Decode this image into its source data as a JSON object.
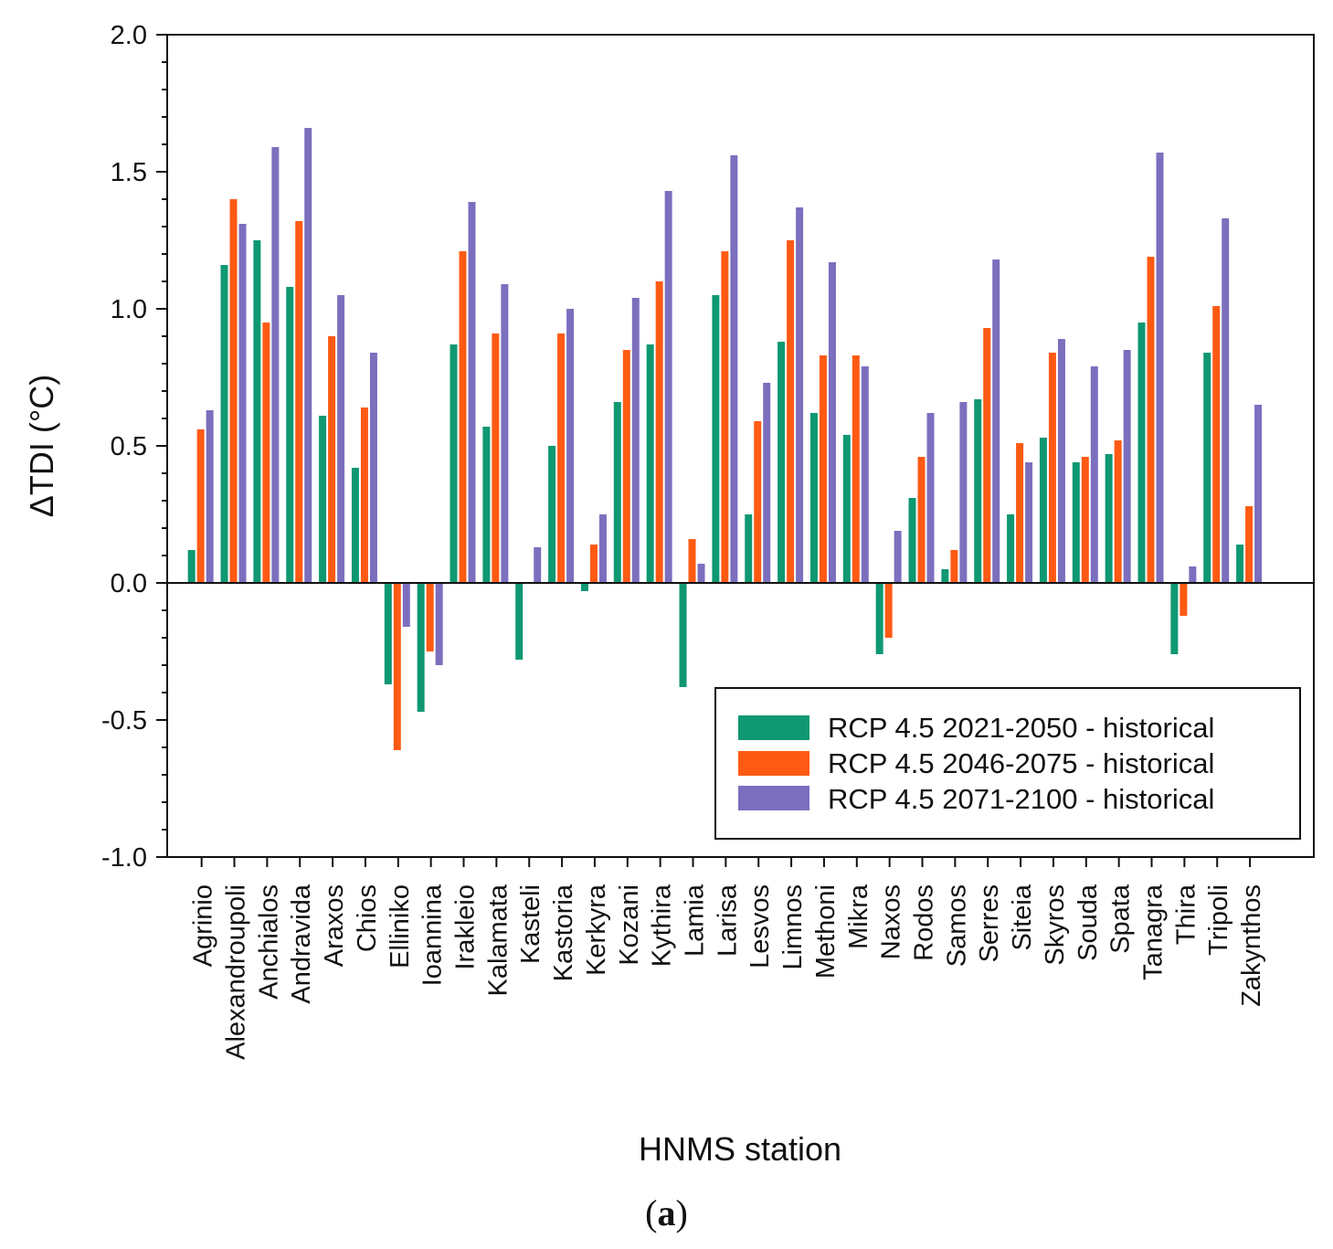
{
  "chart_data": {
    "type": "bar",
    "title": "",
    "xlabel": "HNMS station",
    "ylabel": "ΔTDI (°C)",
    "ylim": [
      -1.0,
      2.0
    ],
    "yticks": [
      "-1.0",
      "-0.5",
      "0.0",
      "0.5",
      "1.0",
      "1.5",
      "2.0"
    ],
    "legend_position": "lower-right",
    "categories": [
      "Agrinio",
      "Alexandroupoli",
      "Anchialos",
      "Andravida",
      "Araxos",
      "Chios",
      "Elliniko",
      "Ioannina",
      "Irakleio",
      "Kalamata",
      "Kasteli",
      "Kastoria",
      "Kerkyra",
      "Kozani",
      "Kythira",
      "Lamia",
      "Larisa",
      "Lesvos",
      "Limnos",
      "Methoni",
      "Mikra",
      "Naxos",
      "Rodos",
      "Samos",
      "Serres",
      "Siteia",
      "Skyros",
      "Souda",
      "Spata",
      "Tanagra",
      "Thira",
      "Tripoli",
      "Zakynthos"
    ],
    "series": [
      {
        "name": "RCP 4.5 2021-2050 - historical",
        "color": "#0f9872",
        "values": [
          0.12,
          1.16,
          1.25,
          1.08,
          0.61,
          0.42,
          -0.37,
          -0.47,
          0.87,
          0.57,
          -0.28,
          0.5,
          -0.03,
          0.66,
          0.87,
          -0.38,
          1.05,
          0.25,
          0.88,
          0.62,
          0.54,
          -0.26,
          0.31,
          0.05,
          0.67,
          0.25,
          0.53,
          0.44,
          0.47,
          0.95,
          -0.26,
          0.84,
          0.14
        ]
      },
      {
        "name": "RCP 4.5 2046-2075 - historical",
        "color": "#ff5a14",
        "values": [
          0.56,
          1.4,
          0.95,
          1.32,
          0.9,
          0.64,
          -0.61,
          -0.25,
          1.21,
          0.91,
          0.0,
          0.91,
          0.14,
          0.85,
          1.1,
          0.16,
          1.21,
          0.59,
          1.25,
          0.83,
          0.83,
          -0.2,
          0.46,
          0.12,
          0.93,
          0.51,
          0.84,
          0.46,
          0.52,
          1.19,
          -0.12,
          1.01,
          0.28
        ]
      },
      {
        "name": "RCP 4.5 2071-2100 - historical",
        "color": "#7b6fbe",
        "values": [
          0.63,
          1.31,
          1.59,
          1.66,
          1.05,
          0.84,
          -0.16,
          -0.3,
          1.39,
          1.09,
          0.13,
          1.0,
          0.25,
          1.04,
          1.43,
          0.07,
          1.56,
          0.73,
          1.37,
          1.17,
          0.79,
          0.19,
          0.62,
          0.66,
          1.18,
          0.44,
          0.89,
          0.79,
          0.85,
          1.57,
          0.06,
          1.33,
          0.65
        ]
      }
    ]
  },
  "caption": {
    "open": "(",
    "label": "a",
    "close": ")"
  }
}
